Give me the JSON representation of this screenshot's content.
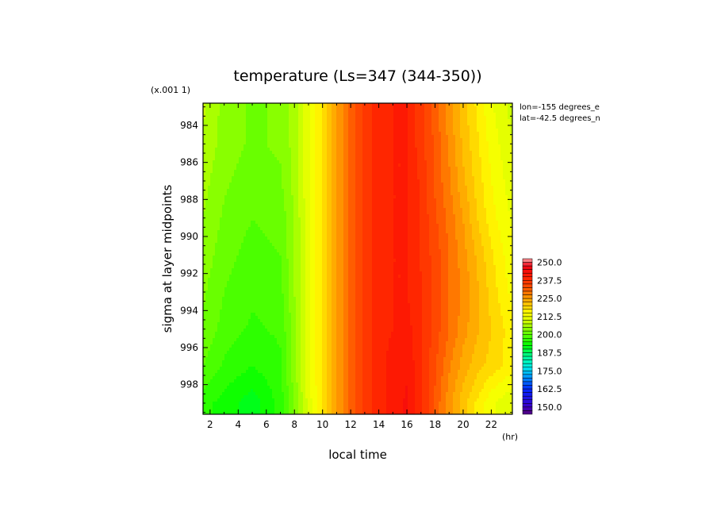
{
  "chart_data": {
    "type": "heatmap",
    "title": "temperature (Ls=347 (344-350))",
    "scale_note": "(x.001 1)",
    "xlabel": "local time",
    "xunit": "(hr)",
    "ylabel": "sigma at layer midpoints",
    "info_lines": [
      "lon=-155 degrees_e",
      "lat=-42.5 degrees_n"
    ],
    "x_ticks": [
      2,
      4,
      6,
      8,
      10,
      12,
      14,
      16,
      18,
      20,
      22
    ],
    "y_ticks": [
      984,
      986,
      988,
      990,
      992,
      994,
      996,
      998
    ],
    "xlim": [
      1.5,
      23.5
    ],
    "ylim_top": 982.8,
    "ylim_bottom": 999.6,
    "x": [
      1.5,
      3,
      5,
      7,
      8,
      9,
      10,
      11,
      12,
      13,
      14,
      15,
      16,
      17,
      18,
      19,
      20,
      21,
      22,
      23.5
    ],
    "y": [
      983,
      985,
      987,
      989,
      991,
      993,
      995,
      997,
      999
    ],
    "z": [
      [
        208,
        204,
        202,
        203,
        206,
        212,
        218,
        225,
        231,
        236,
        239,
        240,
        240,
        236,
        231,
        226,
        221,
        217,
        213,
        209
      ],
      [
        207,
        204,
        202,
        203,
        206,
        212,
        218,
        225,
        231,
        236,
        239,
        240,
        240,
        236,
        232,
        227,
        222,
        218,
        214,
        210
      ],
      [
        206,
        203,
        201,
        202,
        206,
        212,
        218,
        225,
        231,
        236,
        239,
        240,
        240,
        237,
        232,
        228,
        223,
        219,
        215,
        211
      ],
      [
        205,
        202,
        200,
        201,
        205,
        212,
        218,
        225,
        231,
        236,
        239,
        240,
        240,
        237,
        233,
        229,
        225,
        220,
        216,
        212
      ],
      [
        204,
        201,
        199,
        200,
        205,
        212,
        218,
        225,
        231,
        236,
        239,
        240,
        240,
        237,
        234,
        230,
        226,
        222,
        218,
        213
      ],
      [
        203,
        200,
        198,
        199,
        205,
        212,
        218,
        225,
        231,
        236,
        239,
        240,
        240,
        238,
        234,
        230,
        227,
        223,
        219,
        214
      ],
      [
        202,
        199,
        197,
        198,
        204,
        212,
        218,
        225,
        231,
        236,
        239,
        240,
        241,
        238,
        234,
        230,
        226,
        223,
        220,
        216
      ],
      [
        200,
        197,
        195,
        197,
        204,
        212,
        218,
        225,
        231,
        236,
        239,
        241,
        242,
        238,
        233,
        228,
        224,
        221,
        219,
        216
      ],
      [
        196,
        194,
        191,
        196,
        203,
        211,
        218,
        225,
        231,
        236,
        239,
        241,
        243,
        238,
        232,
        226,
        221,
        217,
        213,
        210
      ]
    ],
    "colorbar": {
      "min": 145,
      "max": 252.5,
      "step": 2.5,
      "labels": [
        "250.0",
        "237.5",
        "225.0",
        "212.5",
        "200.0",
        "187.5",
        "175.0",
        "162.5",
        "150.0"
      ]
    }
  }
}
